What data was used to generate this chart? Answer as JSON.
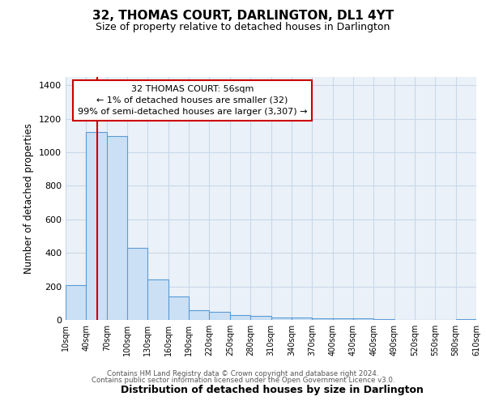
{
  "title": "32, THOMAS COURT, DARLINGTON, DL1 4YT",
  "subtitle": "Size of property relative to detached houses in Darlington",
  "xlabel": "Distribution of detached houses by size in Darlington",
  "ylabel": "Number of detached properties",
  "bin_edges": [
    10,
    40,
    70,
    100,
    130,
    160,
    190,
    220,
    250,
    280,
    310,
    340,
    370,
    400,
    430,
    460,
    490,
    520,
    550,
    580,
    610
  ],
  "bar_heights": [
    210,
    1120,
    1095,
    430,
    240,
    140,
    60,
    47,
    28,
    22,
    15,
    14,
    10,
    10,
    10,
    5,
    0,
    0,
    0,
    5
  ],
  "bar_facecolor": "#cce0f5",
  "bar_edgecolor": "#5b9bd5",
  "grid_color": "#c8d8ea",
  "background_color": "#eaf1f8",
  "red_line_x": 56,
  "ylim": [
    0,
    1450
  ],
  "yticks": [
    0,
    200,
    400,
    600,
    800,
    1000,
    1200,
    1400
  ],
  "annotation_title": "32 THOMAS COURT: 56sqm",
  "annotation_line1": "← 1% of detached houses are smaller (32)",
  "annotation_line2": "99% of semi-detached houses are larger (3,307) →",
  "annotation_box_edgecolor": "#cc0000",
  "footnote1": "Contains HM Land Registry data © Crown copyright and database right 2024.",
  "footnote2": "Contains public sector information licensed under the Open Government Licence v3.0."
}
